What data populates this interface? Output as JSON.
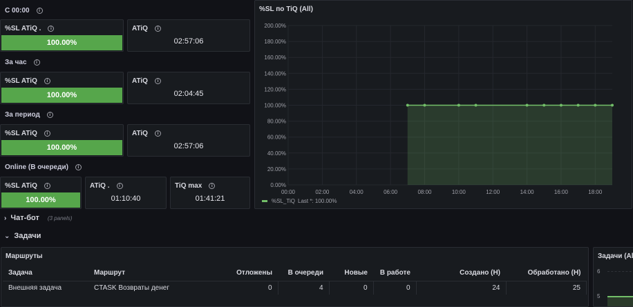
{
  "groups": [
    {
      "title": "С 00:00",
      "sl_title": "%SL ATiQ .",
      "sl_value": "100.00%",
      "atiq_title": "ATiQ",
      "atiq_value": "02:57:06"
    },
    {
      "title": "За час",
      "sl_title": "%SL ATiQ",
      "sl_value": "100.00%",
      "atiq_title": "ATiQ",
      "atiq_value": "02:04:45"
    },
    {
      "title": "За период",
      "sl_title": "%SL ATiQ",
      "sl_value": "100.00%",
      "atiq_title": "ATiQ",
      "atiq_value": "02:57:06"
    }
  ],
  "online": {
    "title": "Online (В очереди)",
    "sl_title": "%SL ATiQ",
    "sl_value": "100.00%",
    "atiq_title": "ATiQ .",
    "atiq_value": "01:10:40",
    "tiq_title": "TiQ max",
    "tiq_value": "01:41:21"
  },
  "chart_panel": {
    "title": "%SL по TiQ (All)"
  },
  "chart_data": {
    "type": "area",
    "title": "%SL по TiQ (All)",
    "x_ticks": [
      "00:00",
      "02:00",
      "04:00",
      "06:00",
      "08:00",
      "10:00",
      "12:00",
      "14:00",
      "16:00",
      "18:00"
    ],
    "y_ticks": [
      "0.00%",
      "20.00%",
      "40.00%",
      "60.00%",
      "80.00%",
      "100.00%",
      "120.00%",
      "140.00%",
      "160.00%",
      "180.00%",
      "200.00%"
    ],
    "ylim": [
      0,
      200
    ],
    "xlim_hours": [
      0,
      19
    ],
    "series": [
      {
        "name": "%SL_TiQ",
        "color": "#73bf69",
        "legend_stat": "Last *: 100.00%",
        "points": [
          [
            7,
            100
          ],
          [
            8,
            100
          ],
          [
            10,
            100
          ],
          [
            11,
            100
          ],
          [
            14,
            100
          ],
          [
            15,
            100
          ],
          [
            16,
            100
          ],
          [
            17,
            100
          ],
          [
            18,
            100
          ],
          [
            19,
            100
          ]
        ]
      }
    ],
    "grid": true,
    "legend_position": "bottom-left"
  },
  "rows": {
    "chatbot_label": "Чат-бот",
    "chatbot_count": "(3 panels)",
    "tasks_label": "Задачи"
  },
  "routes_table": {
    "title": "Маршруты",
    "columns": [
      "Задача",
      "Маршрут",
      "Отложены",
      "В очереди",
      "Новые",
      "В работе",
      "Создано (Н)",
      "Обработано (Н)"
    ],
    "rows": [
      [
        "Внешняя задача",
        "CTASK Возвраты денег",
        "0",
        "4",
        "0",
        "0",
        "24",
        "25"
      ]
    ]
  },
  "right_panel": {
    "title": "Задачи (All",
    "y_ticks": [
      "6",
      "5"
    ]
  }
}
